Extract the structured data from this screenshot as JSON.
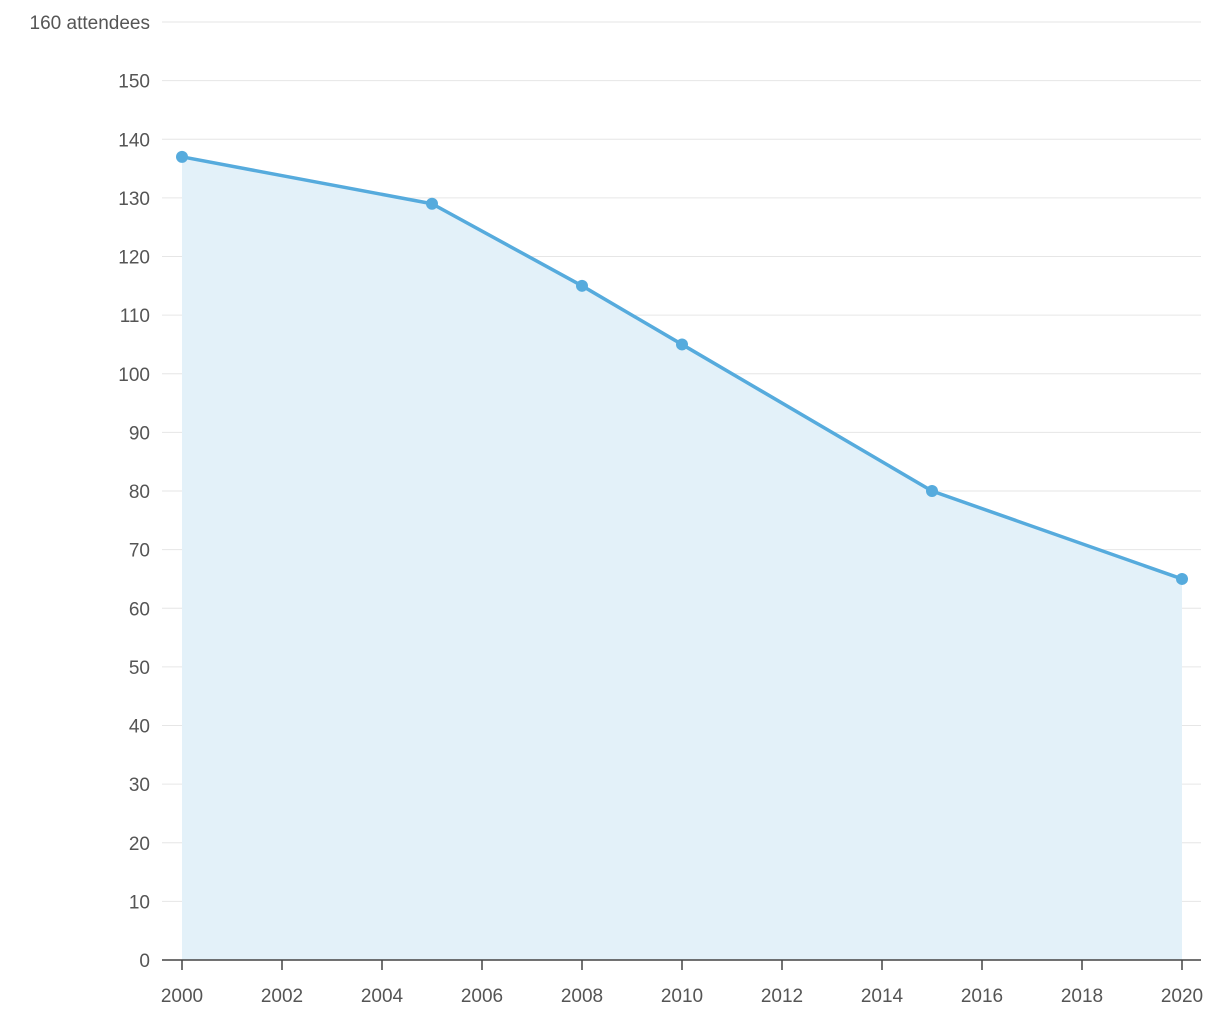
{
  "chart_data": {
    "type": "area",
    "x": [
      2000,
      2005,
      2008,
      2010,
      2015,
      2020
    ],
    "series": [
      {
        "values": [
          137,
          129,
          115,
          105,
          80,
          65
        ]
      }
    ],
    "xlim": [
      2000,
      2020
    ],
    "ylim": [
      0,
      160
    ],
    "x_ticks": [
      "2000",
      "2002",
      "2004",
      "2006",
      "2008",
      "2010",
      "2012",
      "2014",
      "2016",
      "2018",
      "2020"
    ],
    "y_ticks": [
      "0",
      "10",
      "20",
      "30",
      "40",
      "50",
      "60",
      "70",
      "80",
      "90",
      "100",
      "110",
      "120",
      "130",
      "140",
      "150",
      "160 attendees"
    ],
    "grid": true,
    "colors": {
      "line": "#56abdd",
      "fill": "#e3f1f9"
    }
  }
}
